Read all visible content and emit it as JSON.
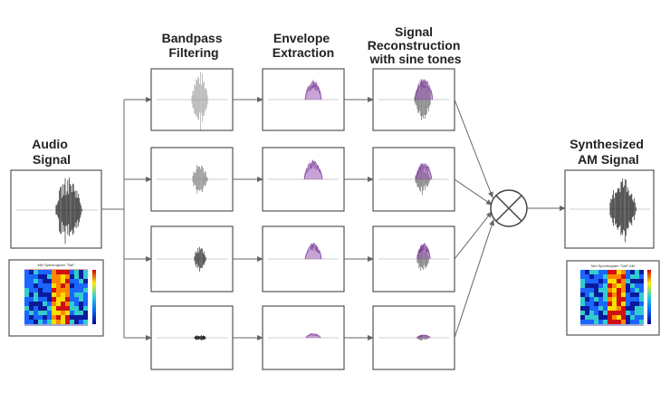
{
  "labels": {
    "audio_signal": [
      "Audio",
      "Signal"
    ],
    "bandpass": [
      "Bandpass",
      "Filtering"
    ],
    "envelope": [
      "Envelope",
      "Extraction"
    ],
    "reconstruction": [
      "Signal",
      "Reconstruction",
      "with sine tones"
    ],
    "synthesized": [
      "Synthesized",
      "AM Signal"
    ]
  },
  "spectrogram_titles": {
    "input": "Mel Spectrogram \"Sail\"",
    "output": "Mel Spectrogram \"Sail\" AM"
  },
  "channels": 4,
  "colors": {
    "waveform": "#444444",
    "envelope": "#9b59b6",
    "box_stroke": "#555555",
    "arrow": "#666666"
  }
}
